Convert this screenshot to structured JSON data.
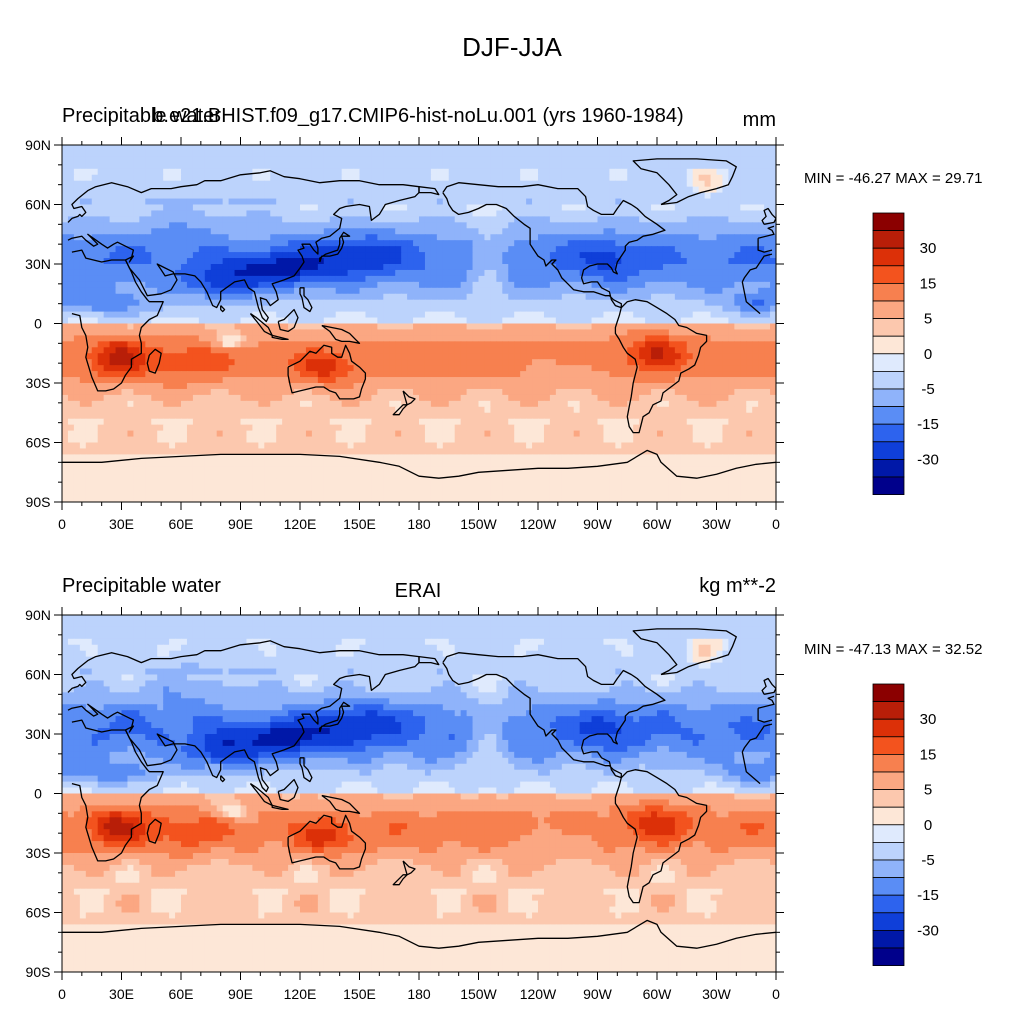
{
  "figure": {
    "title": "DJF-JJA"
  },
  "colors": {
    "levels": [
      "#00008b",
      "#0018a8",
      "#0f3fd9",
      "#2d63ee",
      "#5a8df5",
      "#8fb3fa",
      "#bcd3fc",
      "#dfeafd",
      "#fde7d7",
      "#fcc8ae",
      "#fba782",
      "#f7804f",
      "#f3531e",
      "#dc3008",
      "#b81e08",
      "#8b0000"
    ]
  },
  "chart_data": [
    {
      "type": "heatmap",
      "left_title": "Precipitable water",
      "center_title": "b.e21.BHIST.f09_g17.CMIP6-hist-noLu.001 (yrs 1960-1984)",
      "units": "mm",
      "stats": "MIN = -46.27 MAX =  29.71",
      "min": -46.27,
      "max": 29.71,
      "x_ticks": [
        "0",
        "30E",
        "60E",
        "90E",
        "120E",
        "150E",
        "180",
        "150W",
        "120W",
        "90W",
        "60W",
        "30W",
        "0"
      ],
      "y_ticks": [
        "90N",
        "60N",
        "30N",
        "0",
        "30S",
        "60S",
        "90S"
      ],
      "colorbar_labels": [
        "30",
        "15",
        "5",
        "0",
        "-5",
        "-15",
        "-30"
      ]
    },
    {
      "type": "heatmap",
      "left_title": "Precipitable water",
      "center_title": "ERAI",
      "units": "kg m**-2",
      "stats": "MIN = -47.13 MAX =  32.52",
      "min": -47.13,
      "max": 32.52,
      "x_ticks": [
        "0",
        "30E",
        "60E",
        "90E",
        "120E",
        "150E",
        "180",
        "150W",
        "120W",
        "90W",
        "60W",
        "30W",
        "0"
      ],
      "y_ticks": [
        "90N",
        "60N",
        "30N",
        "0",
        "30S",
        "60S",
        "90S"
      ],
      "colorbar_labels": [
        "30",
        "15",
        "5",
        "0",
        "-5",
        "-15",
        "-30"
      ]
    }
  ]
}
